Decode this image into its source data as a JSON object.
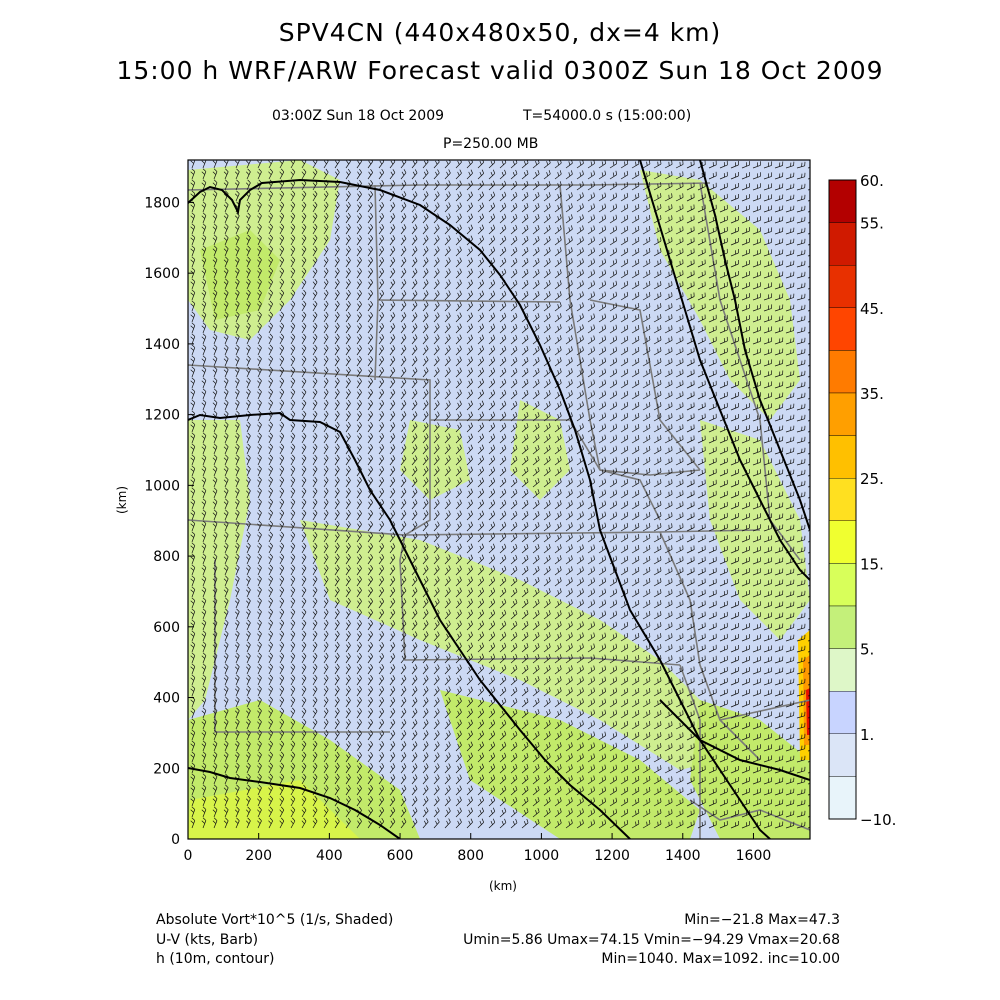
{
  "header": {
    "title_line1": "SPV4CN (440x480x50, dx=4 km)",
    "title_line2": "15:00 h WRF/ARW Forecast valid 0300Z Sun 18 Oct 2009",
    "valid_time": "03:00Z Sun 18 Oct 2009",
    "model_time": "T=54000.0 s (15:00:00)",
    "level": "P=250.00 MB"
  },
  "axes": {
    "x_label": "(km)",
    "y_label": "(km)",
    "x_ticks": [
      "0",
      "200",
      "400",
      "600",
      "800",
      "1000",
      "1200",
      "1400",
      "1600"
    ],
    "y_ticks": [
      "0",
      "200",
      "400",
      "600",
      "800",
      "1000",
      "1200",
      "1400",
      "1600",
      "1800"
    ]
  },
  "colorbar": {
    "labels": [
      "60.",
      "55.",
      "45.",
      "35.",
      "25.",
      "15.",
      "5.",
      "1.",
      "−10."
    ],
    "colors": [
      "#b30000",
      "#d01a00",
      "#e83000",
      "#ff4500",
      "#ff7b00",
      "#ff9f00",
      "#ffc000",
      "#ffe020",
      "#f0ff30",
      "#d8ff5a",
      "#c4f07a",
      "#def7c8",
      "#c8d4ff",
      "#dbe5f7",
      "#e8f4fa"
    ]
  },
  "footer": {
    "field1": "Absolute Vort*10^5 (1/s, Shaded)",
    "field1_stats": "Min=−21.8 Max=47.3",
    "field2": "U-V (kts, Barb)",
    "field2_stats": "Umin=5.86 Umax=74.15 Vmin=−94.29 Vmax=20.68",
    "field3": "h (10m, contour)",
    "field3_stats": "Min=1040. Max=1092. inc=10.00"
  },
  "map": {
    "x_range_km": [
      0,
      1760
    ],
    "y_range_km": [
      0,
      1920
    ],
    "shading_colors": {
      "background": "#ccd9f4",
      "light_green": "#cfee90",
      "green": "#c2ea6a",
      "yellow": "#e8f33a",
      "orange": "#ff9a00",
      "red": "#e81000"
    }
  }
}
